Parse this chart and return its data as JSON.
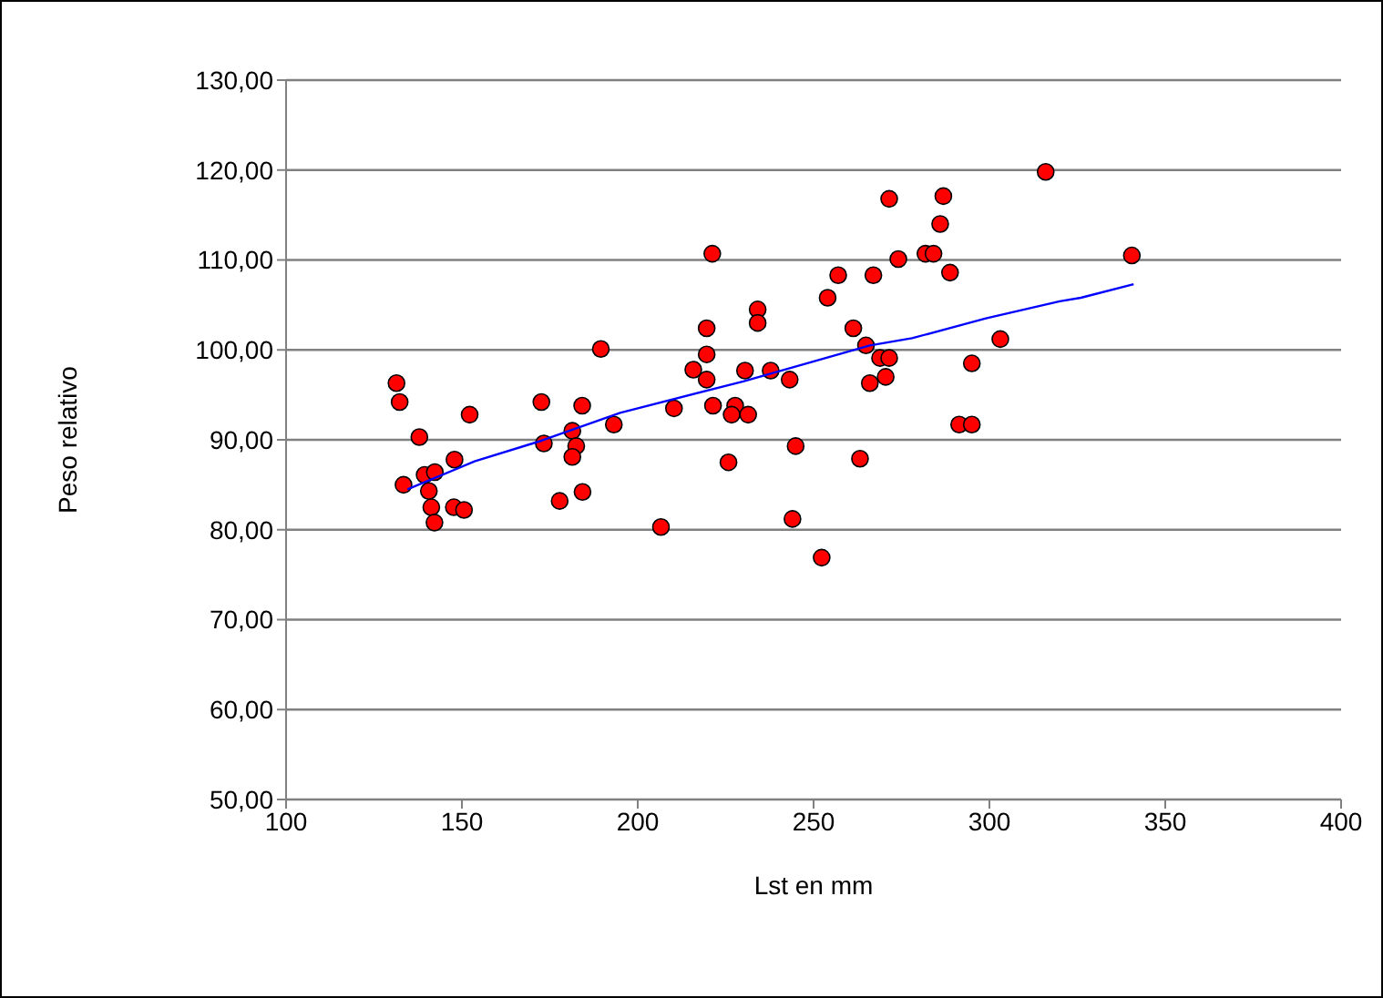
{
  "chart_data": {
    "type": "scatter",
    "xlabel": "Lst en mm",
    "ylabel": "Peso relativo",
    "xlim": [
      100,
      400
    ],
    "xticks": [
      100,
      150,
      200,
      250,
      300,
      350,
      400
    ],
    "ylim": [
      50,
      130
    ],
    "yticks": [
      {
        "value": 50,
        "label": "50,00"
      },
      {
        "value": 60,
        "label": "60,00"
      },
      {
        "value": 70,
        "label": "70,00"
      },
      {
        "value": 80,
        "label": "80,00"
      },
      {
        "value": 90,
        "label": "90,00"
      },
      {
        "value": 100,
        "label": "100,00"
      },
      {
        "value": 110,
        "label": "110,00"
      },
      {
        "value": 120,
        "label": "120,00"
      },
      {
        "value": 130,
        "label": "130,00"
      }
    ],
    "grid": "y",
    "legend": false,
    "marker": "circle",
    "series": [
      {
        "color": "#ff0000",
        "x": [
          131.4,
          132.3,
          133.4,
          137.9,
          139.4,
          142.3,
          140.6,
          141.3,
          142.2,
          147.9,
          147.7,
          150.6,
          152.2,
          172.6,
          173.3,
          177.8,
          181.4,
          182.5,
          181.4,
          184.2,
          184.3,
          189.5,
          193.2,
          206.6,
          210.3,
          221.2,
          215.8,
          219.6,
          219.6,
          219.6,
          221.4,
          225.8,
          227.7,
          226.7,
          231.4,
          230.5,
          234.1,
          234.1,
          237.8,
          243.2,
          244.9,
          244.0,
          252.3,
          254.0,
          257.0,
          261.3,
          263.2,
          264.9,
          266.0,
          267.0,
          268.9,
          271.5,
          270.5,
          271.5,
          274.1,
          281.8,
          284.1,
          286.9,
          286.0,
          288.8,
          291.4,
          295.0,
          295.0,
          303.1,
          316.0,
          340.5
        ],
        "values": [
          96.3,
          94.2,
          85.0,
          90.3,
          86.1,
          86.4,
          84.3,
          82.5,
          80.8,
          87.8,
          82.5,
          82.2,
          92.8,
          94.2,
          89.6,
          83.2,
          91.0,
          89.3,
          88.1,
          93.8,
          84.2,
          100.1,
          91.7,
          80.3,
          93.5,
          110.7,
          97.8,
          102.4,
          99.5,
          96.7,
          93.8,
          87.5,
          93.8,
          92.8,
          92.8,
          97.7,
          104.5,
          103.0,
          97.7,
          96.7,
          89.3,
          81.2,
          76.9,
          105.8,
          108.3,
          102.4,
          87.9,
          100.5,
          96.3,
          108.3,
          99.1,
          99.1,
          97.0,
          116.8,
          110.1,
          110.7,
          110.7,
          117.1,
          114.0,
          108.6,
          91.7,
          91.7,
          98.5,
          101.2,
          119.8,
          110.5
        ]
      },
      {
        "type": "line",
        "color": "#0000ff",
        "marker": "none",
        "x": [
          134.5,
          153.6,
          172.6,
          195,
          230,
          266,
          278,
          299,
          320,
          326,
          341
        ],
        "values": [
          84.5,
          87.6,
          89.9,
          93,
          96.5,
          100.5,
          101.3,
          103.5,
          105.4,
          105.8,
          107.3
        ]
      }
    ]
  }
}
